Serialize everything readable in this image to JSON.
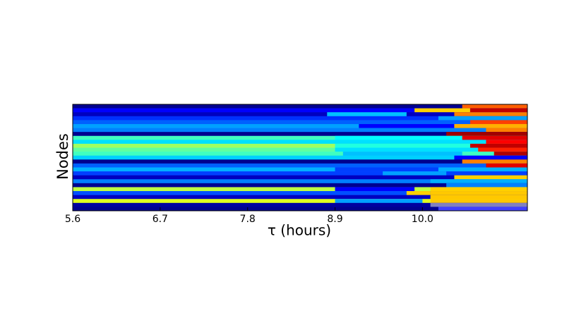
{
  "chart_data": {
    "type": "heatmap",
    "xlabel": "τ (hours)",
    "ylabel": "Nodes",
    "xlim": [
      5.6,
      11.32
    ],
    "xticks": [
      5.6,
      6.7,
      7.8,
      8.9,
      {
        "value": 10,
        "label": "10.0"
      }
    ],
    "rows": [
      {
        "color": "#00008f",
        "segments": [
          {
            "x": [
              10.5,
              11.32
            ],
            "color": "#ff6000"
          }
        ]
      },
      {
        "color": "#0000ff",
        "segments": [
          {
            "x": [
              9.9,
              10.6
            ],
            "color": "#ffd000"
          },
          {
            "x": [
              10.6,
              11.32
            ],
            "color": "#c00000"
          }
        ]
      },
      {
        "color": "#0000c0",
        "segments": [
          {
            "x": [
              8.8,
              9.8
            ],
            "color": "#00c0ff"
          },
          {
            "x": [
              10.4,
              11.32
            ],
            "color": "#ff8000"
          }
        ]
      },
      {
        "color": "#0030ff",
        "segments": [
          {
            "x": [
              10.2,
              11.32
            ],
            "color": "#00a0ff"
          }
        ]
      },
      {
        "color": "#0060ff",
        "segments": [
          {
            "x": [
              10.6,
              11.32
            ],
            "color": "#ff4000"
          }
        ]
      },
      {
        "color": "#00a0ff",
        "segments": [
          {
            "x": [
              9.2,
              10.4
            ],
            "color": "#0000ff"
          },
          {
            "x": [
              10.4,
              11.32
            ],
            "color": "#ffb000"
          }
        ]
      },
      {
        "color": "#0080ff",
        "segments": [
          {
            "x": [
              10.8,
              11.32
            ],
            "color": "#ff8000"
          }
        ]
      },
      {
        "color": "#000090",
        "segments": [
          {
            "x": [
              10.3,
              11.32
            ],
            "color": "#a00000"
          }
        ]
      },
      {
        "color": "#40ffc0",
        "segments": [
          {
            "x": [
              8.9,
              10.5
            ],
            "color": "#00ffff"
          },
          {
            "x": [
              10.5,
              11.32
            ],
            "color": "#e00000"
          }
        ]
      },
      {
        "color": "#00e0ff",
        "segments": [
          {
            "x": [
              10.8,
              11.32
            ],
            "color": "#ff0000"
          }
        ]
      },
      {
        "color": "#a0ff60",
        "segments": [
          {
            "x": [
              8.9,
              10.6
            ],
            "color": "#20ffe0"
          },
          {
            "x": [
              10.6,
              11.32
            ],
            "color": "#c00000"
          }
        ]
      },
      {
        "color": "#60ffa0",
        "segments": [
          {
            "x": [
              8.9,
              10.7
            ],
            "color": "#00e0ff"
          },
          {
            "x": [
              10.7,
              11.32
            ],
            "color": "#ff2000"
          }
        ]
      },
      {
        "color": "#40ffc0",
        "segments": [
          {
            "x": [
              9.0,
              10.5
            ],
            "color": "#00c0ff"
          },
          {
            "x": [
              10.9,
              11.32
            ],
            "color": "#b00000"
          }
        ]
      },
      {
        "color": "#00d0ff",
        "segments": [
          {
            "x": [
              10.4,
              11.32
            ],
            "color": "#0000ff"
          }
        ]
      },
      {
        "color": "#00008f",
        "segments": [
          {
            "x": [
              10.5,
              11.32
            ],
            "color": "#ff8000"
          }
        ]
      },
      {
        "color": "#0060ff",
        "segments": [
          {
            "x": [
              10.8,
              11.32
            ],
            "color": "#e00000"
          }
        ]
      },
      {
        "color": "#00b0ff",
        "segments": [
          {
            "x": [
              8.9,
              10.2
            ],
            "color": "#0040ff"
          }
        ]
      },
      {
        "color": "#0040ff",
        "segments": [
          {
            "x": [
              9.5,
              10.3
            ],
            "color": "#00a0ff"
          }
        ]
      },
      {
        "color": "#0000c0",
        "segments": [
          {
            "x": [
              10.4,
              11.32
            ],
            "color": "#ffd000"
          }
        ]
      },
      {
        "color": "#0080ff",
        "segments": [
          {
            "x": [
              10.1,
              11.32
            ],
            "color": "#00b0ff"
          }
        ]
      },
      {
        "color": "#000090",
        "segments": [
          {
            "x": [
              10.3,
              11.32
            ],
            "color": "#0080ff"
          }
        ]
      },
      {
        "color": "#c0ff40",
        "segments": [
          {
            "x": [
              8.9,
              9.9
            ],
            "color": "#0000ff"
          },
          {
            "x": [
              10.1,
              11.32
            ],
            "color": "#ffd000"
          }
        ]
      },
      {
        "color": "#0050ff",
        "segments": [
          {
            "x": [
              9.8,
              10.1
            ],
            "color": "#ffd000"
          },
          {
            "x": [
              10.1,
              11.32
            ],
            "color": "#ffc800"
          }
        ]
      },
      {
        "color": "#0000c0",
        "segments": [
          {
            "x": [
              10.1,
              11.32
            ],
            "color": "#ffc800"
          }
        ]
      },
      {
        "color": "#e0ff20",
        "segments": [
          {
            "x": [
              8.9,
              10.0
            ],
            "color": "#00a0ff"
          },
          {
            "x": [
              10.1,
              11.32
            ],
            "color": "#ffc800"
          }
        ]
      },
      {
        "color": "#0000a0",
        "segments": [
          {
            "x": [
              10.1,
              11.32
            ],
            "color": "#8080c0"
          }
        ]
      },
      {
        "color": "#000090",
        "segments": [
          {
            "x": [
              10.2,
              11.32
            ],
            "color": "#4040ff"
          }
        ]
      }
    ]
  }
}
